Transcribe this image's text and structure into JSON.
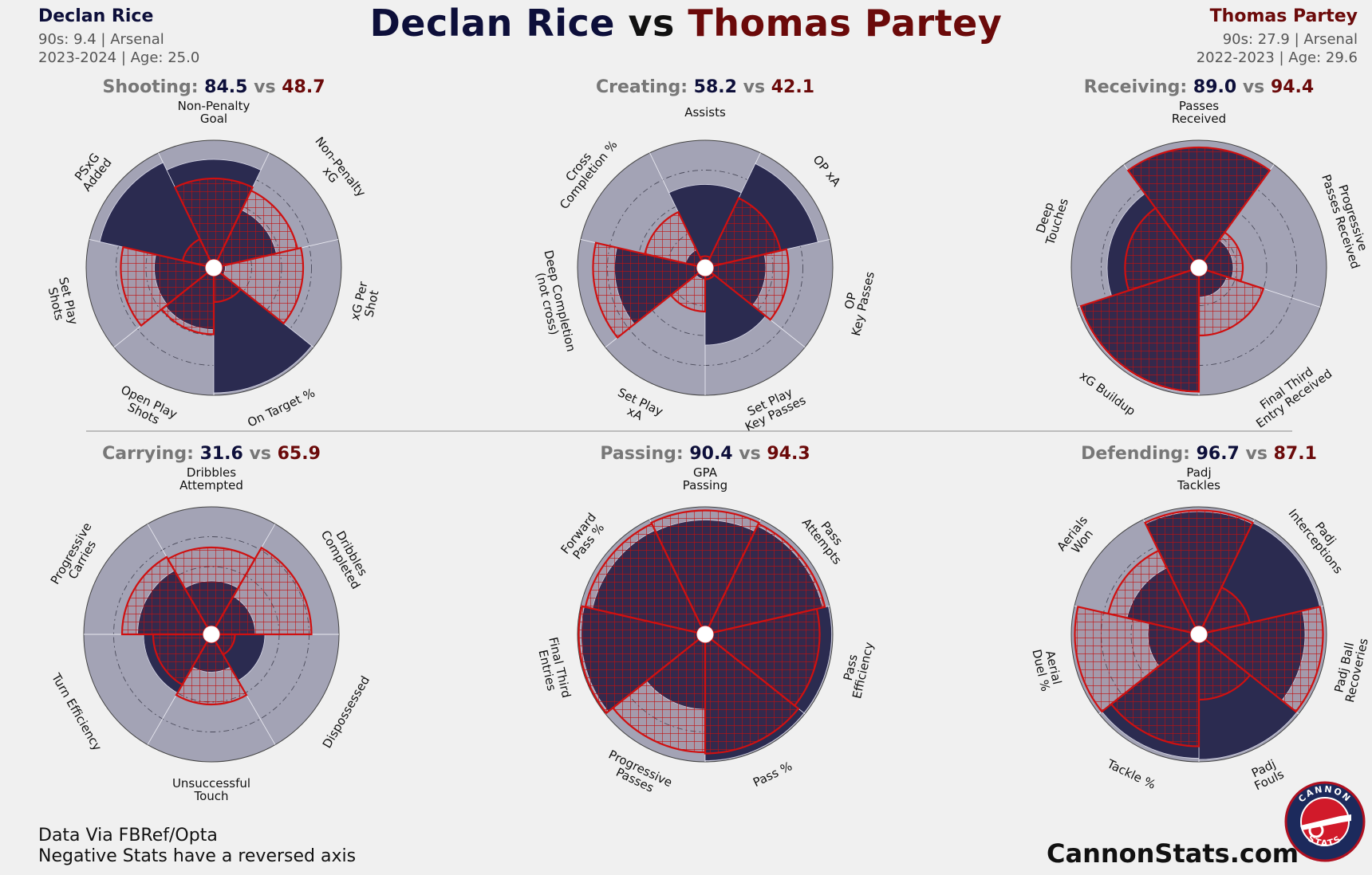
{
  "title": {
    "player_a": "Declan Rice",
    "vs": "vs",
    "player_b": "Thomas Partey"
  },
  "player_a": {
    "name": "Declan Rice",
    "line1": "90s: 9.4 | Arsenal",
    "line2": "2023-2024 | Age: 25.0",
    "color": "#0d0f3a"
  },
  "player_b": {
    "name": "Thomas Partey",
    "line1": "90s: 27.9 | Arsenal",
    "line2": "2022-2023 | Age: 29.6",
    "color": "#6b0a0a"
  },
  "footer": {
    "line1": "Data Via FBRef/Opta",
    "line2": "Negative Stats have a reversed axis"
  },
  "site": "CannonStats.com",
  "logo": {
    "top_text": "CANNON",
    "bottom_text": "STATS"
  },
  "colors": {
    "rice_fill": "#2b2b50",
    "partey_edge": "#d01010",
    "background_ring": "#a3a3b5",
    "page_bg": "#f0f0f0"
  },
  "chart_data": [
    {
      "type": "radar-bar",
      "category": "Shooting",
      "score_a": "84.5",
      "score_b": "48.7",
      "sep": "vs",
      "rlim": [
        0,
        100
      ],
      "labels": [
        "Non-Penalty\nGoal",
        "Non-Penalty\nxG",
        "xG Per\nShot",
        "On Target %",
        "Open Play\nShots",
        "Set Play\nShots",
        "PSxG\nAdded"
      ],
      "series": [
        {
          "name": "Declan Rice",
          "values": [
            84,
            47,
            3,
            98,
            45,
            43,
            91
          ]
        },
        {
          "name": "Thomas Partey",
          "values": [
            68,
            65,
            68,
            22,
            49,
            71,
            20
          ]
        }
      ]
    },
    {
      "type": "radar-bar",
      "category": "Creating",
      "score_a": "58.2",
      "score_b": "42.1",
      "sep": "vs",
      "rlim": [
        0,
        100
      ],
      "labels": [
        "Assists",
        "OP xA",
        "OP\nKey Passes",
        "Set Play\nKey Passes",
        "Set Play\nxA",
        "Deep Completion\n(not cross)",
        "Cross\nCompletion %"
      ],
      "series": [
        {
          "name": "Declan Rice",
          "values": [
            63,
            90,
            44,
            58,
            3,
            69,
            10
          ]
        },
        {
          "name": "Thomas Partey",
          "values": [
            3,
            58,
            63,
            3,
            30,
            87,
            45
          ]
        }
      ]
    },
    {
      "type": "radar-bar",
      "category": "Receiving",
      "score_a": "89.0",
      "score_b": "94.4",
      "sep": "vs",
      "rlim": [
        0,
        100
      ],
      "labels": [
        "Passes\nReceived",
        "Progressive\nPasses Received",
        "Final Third\nEntry Received",
        "xG Buildup",
        "Deep\nTouches"
      ],
      "series": [
        {
          "name": "Declan Rice",
          "values": [
            94,
            22,
            18,
            98,
            70
          ]
        },
        {
          "name": "Thomas Partey",
          "values": [
            94,
            30,
            50,
            97,
            55
          ]
        }
      ]
    },
    {
      "type": "radar-bar",
      "category": "Carrying",
      "score_a": "31.6",
      "score_b": "65.9",
      "sep": "vs",
      "rlim": [
        0,
        100
      ],
      "labels": [
        "Dribbles\nAttempted",
        "Dribbles\nCompleted",
        "Dispossessed",
        "Unsuccessful\nTouch",
        "Turn Efficiency",
        "Progressive\nCarries"
      ],
      "series": [
        {
          "name": "Declan Rice",
          "values": [
            38,
            30,
            38,
            25,
            50,
            55
          ]
        },
        {
          "name": "Thomas Partey",
          "values": [
            66,
            77,
            13,
            52,
            42,
            68
          ]
        }
      ]
    },
    {
      "type": "radar-bar",
      "category": "Passing",
      "score_a": "90.4",
      "score_b": "94.3",
      "sep": "vs",
      "rlim": [
        0,
        100
      ],
      "labels": [
        "GPA\nPassing",
        "Pass\nAttempts",
        "Pass\nEfficiency",
        "Pass %",
        "Progressive\nPasses",
        "Final Third\nEntries",
        "Forward\nPass %"
      ],
      "series": [
        {
          "name": "Declan Rice",
          "values": [
            89,
            94,
            99,
            99,
            56,
            97,
            90
          ]
        },
        {
          "name": "Thomas Partey",
          "values": [
            97,
            96,
            89,
            93,
            92,
            99,
            96
          ]
        }
      ]
    },
    {
      "type": "radar-bar",
      "category": "Defending",
      "score_a": "96.7",
      "score_b": "87.1",
      "sep": "vs",
      "rlim": [
        0,
        100
      ],
      "labels": [
        "Padj\nTackles",
        "Padj\nInterceptions",
        "Padj Ball\nRecoveries",
        "Padj\nFouls",
        "Tackle %",
        "Aerial\nDuel %",
        "Aerials\nWon"
      ],
      "series": [
        {
          "name": "Declan Rice",
          "values": [
            96,
            97,
            82,
            98,
            97,
            36,
            55
          ]
        },
        {
          "name": "Thomas Partey",
          "values": [
            97,
            37,
            97,
            48,
            87,
            97,
            71
          ]
        }
      ]
    }
  ]
}
